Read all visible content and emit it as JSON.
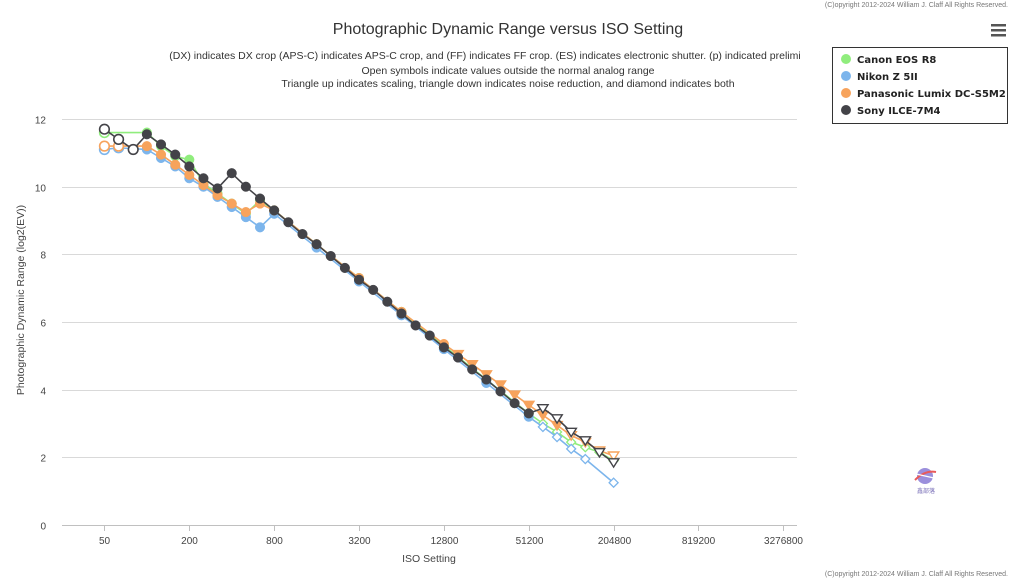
{
  "page": {
    "copyright_top": "(C)opyright 2012-2024 William J. Claff All Rights Reserved.",
    "copyright_bottom": "(C)opyright 2012-2024 William J. Claff All Rights Reserved.",
    "menu_icon": "hamburger-menu-icon",
    "watermark_icon": "logo-watermark-icon",
    "watermark_text": "鑫部落"
  },
  "chart_data": {
    "type": "line",
    "title": "Photographic Dynamic Range versus ISO Setting",
    "subtitle_lines": [
      "(DX) indicates DX crop (APS-C) indicates APS-C crop, and (FF) indicates FF crop. (ES) indicates electronic shutter. (p) indicated prelimi",
      "Open symbols indicate values outside the normal analog range",
      "Triangle up indicates scaling, triangle down indicates noise reduction, and diamond indicates both"
    ],
    "xlabel": "ISO Setting",
    "ylabel": "Photographic Dynamic Range (log2(EV))",
    "x_scale": "log2",
    "x_ticks": [
      50,
      200,
      800,
      3200,
      12800,
      51200,
      204800,
      819200,
      3276800
    ],
    "x_range": [
      25,
      4096000
    ],
    "y_ticks": [
      0,
      2,
      4,
      6,
      8,
      10,
      12
    ],
    "ylim": [
      0,
      12.8
    ],
    "grid": true,
    "legend_position": "top-right",
    "series": [
      {
        "name": "Canon EOS R8",
        "color": "#90ed7d",
        "points": [
          {
            "x": 50,
            "y": 11.6,
            "marker": "circle-open"
          },
          {
            "x": 100,
            "y": 11.6,
            "marker": "circle"
          },
          {
            "x": 126,
            "y": 11.2,
            "marker": "circle"
          },
          {
            "x": 159,
            "y": 10.9,
            "marker": "circle"
          },
          {
            "x": 200,
            "y": 10.8,
            "marker": "circle"
          },
          {
            "x": 252,
            "y": 10.1,
            "marker": "circle"
          },
          {
            "x": 317,
            "y": 9.8,
            "marker": "circle"
          },
          {
            "x": 400,
            "y": 9.5,
            "marker": "circle"
          },
          {
            "x": 504,
            "y": 9.2,
            "marker": "circle"
          },
          {
            "x": 635,
            "y": 9.6,
            "marker": "circle"
          },
          {
            "x": 800,
            "y": 9.3,
            "marker": "circle"
          },
          {
            "x": 1600,
            "y": 8.3,
            "marker": "circle"
          },
          {
            "x": 3200,
            "y": 7.3,
            "marker": "circle"
          },
          {
            "x": 6400,
            "y": 6.3,
            "marker": "circle"
          },
          {
            "x": 12800,
            "y": 5.3,
            "marker": "circle"
          },
          {
            "x": 25600,
            "y": 4.3,
            "marker": "circle"
          },
          {
            "x": 51200,
            "y": 3.3,
            "marker": "circle"
          },
          {
            "x": 64508,
            "y": 3.0,
            "marker": "diamond-open"
          },
          {
            "x": 81275,
            "y": 2.75,
            "marker": "diamond-open"
          },
          {
            "x": 102400,
            "y": 2.45,
            "marker": "diamond-open"
          },
          {
            "x": 129016,
            "y": 2.3,
            "marker": "diamond-open"
          },
          {
            "x": 162550,
            "y": 2.15,
            "marker": "diamond-open"
          },
          {
            "x": 204800,
            "y": 1.9,
            "marker": "diamond-open"
          }
        ]
      },
      {
        "name": "Nikon Z 5II",
        "color": "#7cb5ec",
        "points": [
          {
            "x": 50,
            "y": 11.1,
            "marker": "circle-open"
          },
          {
            "x": 63,
            "y": 11.15,
            "marker": "circle-open"
          },
          {
            "x": 100,
            "y": 11.1,
            "marker": "circle"
          },
          {
            "x": 126,
            "y": 10.85,
            "marker": "circle"
          },
          {
            "x": 159,
            "y": 10.6,
            "marker": "circle"
          },
          {
            "x": 200,
            "y": 10.25,
            "marker": "circle"
          },
          {
            "x": 252,
            "y": 10.0,
            "marker": "circle"
          },
          {
            "x": 317,
            "y": 9.7,
            "marker": "circle"
          },
          {
            "x": 400,
            "y": 9.4,
            "marker": "circle"
          },
          {
            "x": 504,
            "y": 9.1,
            "marker": "circle"
          },
          {
            "x": 635,
            "y": 8.8,
            "marker": "circle"
          },
          {
            "x": 800,
            "y": 9.2,
            "marker": "circle"
          },
          {
            "x": 1600,
            "y": 8.2,
            "marker": "circle"
          },
          {
            "x": 3200,
            "y": 7.2,
            "marker": "circle"
          },
          {
            "x": 6400,
            "y": 6.2,
            "marker": "circle"
          },
          {
            "x": 12800,
            "y": 5.2,
            "marker": "circle"
          },
          {
            "x": 25600,
            "y": 4.2,
            "marker": "circle"
          },
          {
            "x": 51200,
            "y": 3.2,
            "marker": "circle"
          },
          {
            "x": 64508,
            "y": 2.9,
            "marker": "diamond-open"
          },
          {
            "x": 81275,
            "y": 2.6,
            "marker": "diamond-open"
          },
          {
            "x": 102400,
            "y": 2.25,
            "marker": "diamond-open"
          },
          {
            "x": 129016,
            "y": 1.95,
            "marker": "diamond-open"
          },
          {
            "x": 204800,
            "y": 1.25,
            "marker": "diamond-open"
          }
        ]
      },
      {
        "name": "Panasonic Lumix DC-S5M2",
        "color": "#f7a35c",
        "points": [
          {
            "x": 50,
            "y": 11.2,
            "marker": "circle-open"
          },
          {
            "x": 63,
            "y": 11.2,
            "marker": "circle-open"
          },
          {
            "x": 100,
            "y": 11.2,
            "marker": "circle"
          },
          {
            "x": 126,
            "y": 10.95,
            "marker": "circle"
          },
          {
            "x": 159,
            "y": 10.65,
            "marker": "circle"
          },
          {
            "x": 200,
            "y": 10.35,
            "marker": "circle"
          },
          {
            "x": 252,
            "y": 10.05,
            "marker": "circle"
          },
          {
            "x": 317,
            "y": 9.75,
            "marker": "circle"
          },
          {
            "x": 400,
            "y": 9.5,
            "marker": "circle"
          },
          {
            "x": 504,
            "y": 9.25,
            "marker": "circle"
          },
          {
            "x": 635,
            "y": 9.5,
            "marker": "circle"
          },
          {
            "x": 800,
            "y": 9.3,
            "marker": "circle"
          },
          {
            "x": 1600,
            "y": 8.3,
            "marker": "circle"
          },
          {
            "x": 3200,
            "y": 7.3,
            "marker": "circle"
          },
          {
            "x": 6400,
            "y": 6.3,
            "marker": "circle"
          },
          {
            "x": 12800,
            "y": 5.35,
            "marker": "circle"
          },
          {
            "x": 16127,
            "y": 5.05,
            "marker": "triangle-down"
          },
          {
            "x": 20319,
            "y": 4.75,
            "marker": "triangle-down"
          },
          {
            "x": 25600,
            "y": 4.45,
            "marker": "triangle-down"
          },
          {
            "x": 32254,
            "y": 4.15,
            "marker": "triangle-down"
          },
          {
            "x": 40637,
            "y": 3.85,
            "marker": "triangle-down"
          },
          {
            "x": 51200,
            "y": 3.55,
            "marker": "triangle-down"
          },
          {
            "x": 64508,
            "y": 3.25,
            "marker": "triangle-down"
          },
          {
            "x": 81275,
            "y": 2.95,
            "marker": "triangle-down"
          },
          {
            "x": 102400,
            "y": 2.65,
            "marker": "triangle-down-open"
          },
          {
            "x": 129016,
            "y": 2.45,
            "marker": "triangle-down-open"
          },
          {
            "x": 162550,
            "y": 2.2,
            "marker": "triangle-down-open"
          },
          {
            "x": 204800,
            "y": 2.05,
            "marker": "triangle-down-open"
          }
        ]
      },
      {
        "name": "Sony ILCE-7M4",
        "color": "#434348",
        "points": [
          {
            "x": 50,
            "y": 11.7,
            "marker": "circle-open"
          },
          {
            "x": 63,
            "y": 11.4,
            "marker": "circle-open"
          },
          {
            "x": 80,
            "y": 11.1,
            "marker": "circle-open"
          },
          {
            "x": 100,
            "y": 11.55,
            "marker": "circle"
          },
          {
            "x": 126,
            "y": 11.25,
            "marker": "circle"
          },
          {
            "x": 159,
            "y": 10.95,
            "marker": "circle"
          },
          {
            "x": 200,
            "y": 10.6,
            "marker": "circle"
          },
          {
            "x": 252,
            "y": 10.25,
            "marker": "circle"
          },
          {
            "x": 317,
            "y": 9.95,
            "marker": "circle"
          },
          {
            "x": 400,
            "y": 10.4,
            "marker": "circle"
          },
          {
            "x": 504,
            "y": 10.0,
            "marker": "circle"
          },
          {
            "x": 635,
            "y": 9.65,
            "marker": "circle"
          },
          {
            "x": 800,
            "y": 9.3,
            "marker": "circle"
          },
          {
            "x": 1008,
            "y": 8.95,
            "marker": "circle"
          },
          {
            "x": 1270,
            "y": 8.6,
            "marker": "circle"
          },
          {
            "x": 1600,
            "y": 8.3,
            "marker": "circle"
          },
          {
            "x": 2016,
            "y": 7.95,
            "marker": "circle"
          },
          {
            "x": 2540,
            "y": 7.6,
            "marker": "circle"
          },
          {
            "x": 3200,
            "y": 7.25,
            "marker": "circle"
          },
          {
            "x": 4032,
            "y": 6.95,
            "marker": "circle"
          },
          {
            "x": 5080,
            "y": 6.6,
            "marker": "circle"
          },
          {
            "x": 6400,
            "y": 6.25,
            "marker": "circle"
          },
          {
            "x": 8064,
            "y": 5.9,
            "marker": "circle"
          },
          {
            "x": 10159,
            "y": 5.6,
            "marker": "circle"
          },
          {
            "x": 12800,
            "y": 5.25,
            "marker": "circle"
          },
          {
            "x": 16127,
            "y": 4.95,
            "marker": "circle"
          },
          {
            "x": 20319,
            "y": 4.6,
            "marker": "circle"
          },
          {
            "x": 25600,
            "y": 4.3,
            "marker": "circle"
          },
          {
            "x": 32254,
            "y": 3.95,
            "marker": "circle"
          },
          {
            "x": 40637,
            "y": 3.6,
            "marker": "circle"
          },
          {
            "x": 51200,
            "y": 3.3,
            "marker": "circle"
          },
          {
            "x": 64508,
            "y": 3.45,
            "marker": "triangle-down-open"
          },
          {
            "x": 81275,
            "y": 3.15,
            "marker": "triangle-down-open"
          },
          {
            "x": 102400,
            "y": 2.75,
            "marker": "triangle-down-open"
          },
          {
            "x": 129016,
            "y": 2.5,
            "marker": "triangle-down-open"
          },
          {
            "x": 162550,
            "y": 2.15,
            "marker": "triangle-down-open"
          },
          {
            "x": 204800,
            "y": 1.85,
            "marker": "triangle-down-open"
          }
        ]
      }
    ]
  }
}
